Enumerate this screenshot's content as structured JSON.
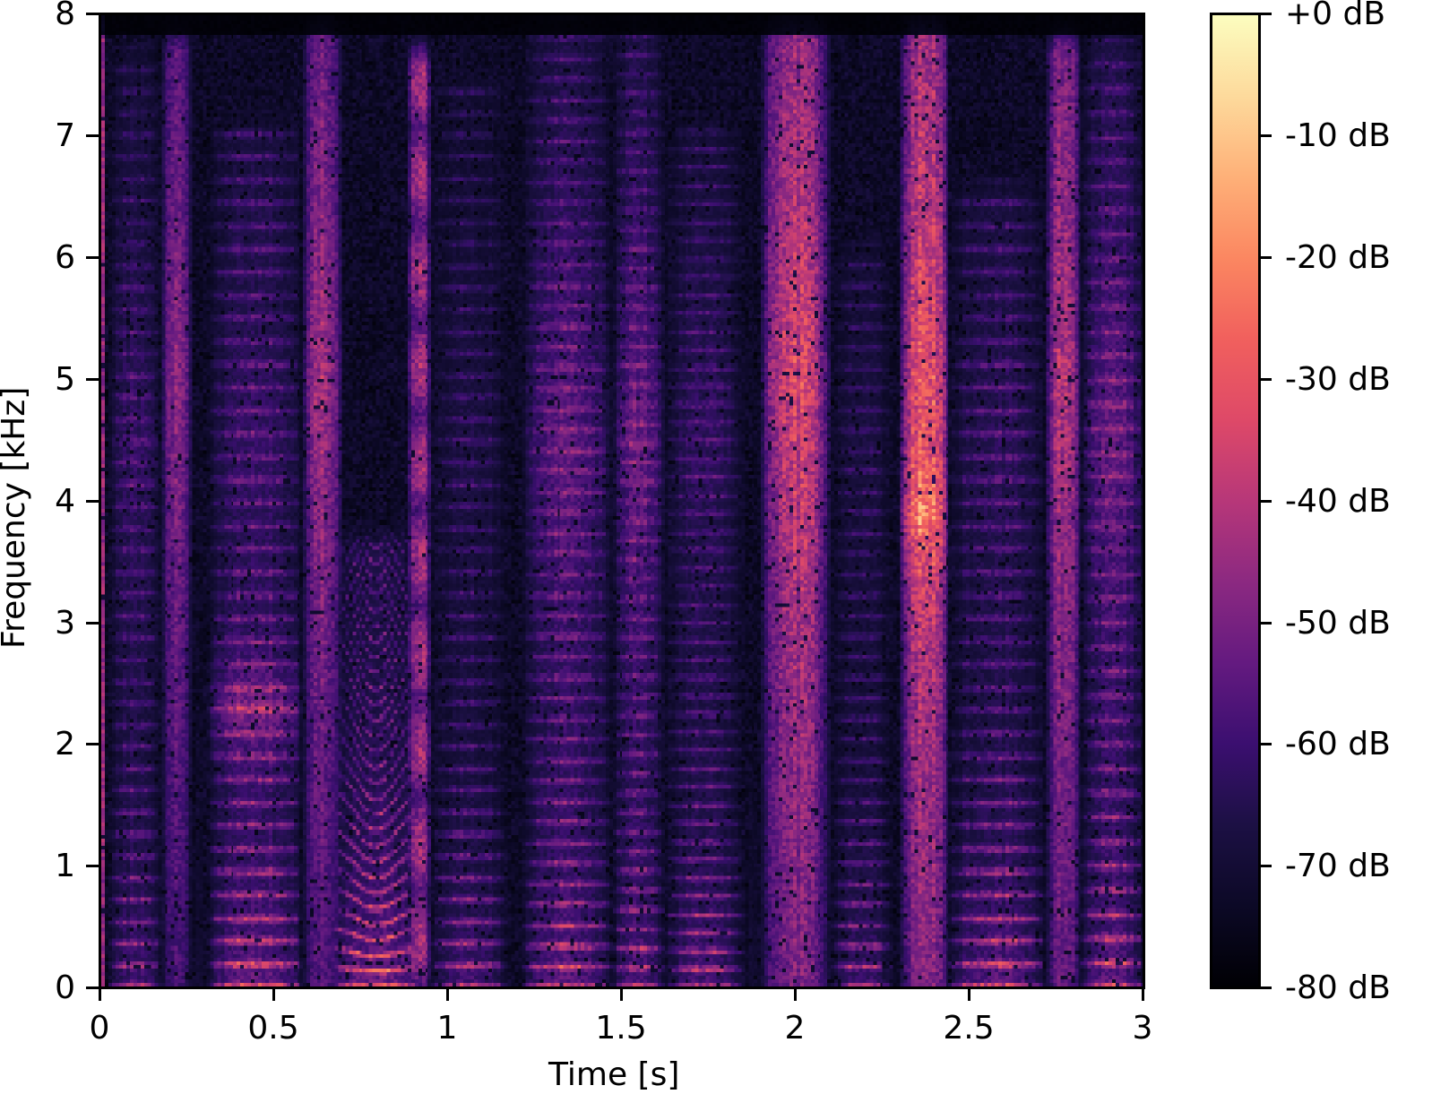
{
  "figure": {
    "ylabel": "Frequency [kHz]",
    "xlabel": "Time [s]",
    "y_ticks": [
      "0",
      "1",
      "2",
      "3",
      "4",
      "5",
      "6",
      "7",
      "8"
    ],
    "x_ticks": [
      "0",
      "0.5",
      "1",
      "1.5",
      "2",
      "2.5",
      "3"
    ],
    "colorbar": {
      "ticks": [
        "+0 dB",
        "-10 dB",
        "-20 dB",
        "-30 dB",
        "-40 dB",
        "-50 dB",
        "-60 dB",
        "-70 dB",
        "-80 dB"
      ],
      "colormap": "magma",
      "stops": [
        "#fcfdbf",
        "#fdda9c",
        "#feb078",
        "#fb8761",
        "#f1605d",
        "#de4968",
        "#b73779",
        "#8c2981",
        "#641a80",
        "#3b0f70",
        "#1c1044",
        "#0c0926",
        "#000004"
      ]
    }
  },
  "chart_data": {
    "type": "heatmap",
    "title": "",
    "xlabel": "Time [s]",
    "ylabel": "Frequency [kHz]",
    "xlim": [
      0,
      3
    ],
    "ylim": [
      0,
      8
    ],
    "x_ticks": [
      0,
      0.5,
      1,
      1.5,
      2,
      2.5,
      3
    ],
    "y_ticks": [
      0,
      1,
      2,
      3,
      4,
      5,
      6,
      7,
      8
    ],
    "colorbar": {
      "label": "",
      "range_db": [
        -80,
        0
      ],
      "ticks_db": [
        0,
        -10,
        -20,
        -30,
        -40,
        -50,
        -60,
        -70,
        -80
      ],
      "tick_labels": [
        "+0 dB",
        "-10 dB",
        "-20 dB",
        "-30 dB",
        "-40 dB",
        "-50 dB",
        "-60 dB",
        "-70 dB",
        "-80 dB"
      ],
      "colormap": "magma"
    },
    "description": "Speech spectrogram, 0-3 s, 0-8 kHz. Strong harmonic stacks (approx -5 to -15 dB) below ~1 kHz during voiced segments; fricative bursts extend upward to ~7.8 kHz; near-silence (-80 dB) above ~7.5 kHz and in gaps.",
    "segments": [
      {
        "t0": 0.0,
        "t1": 0.015,
        "kind": "onset",
        "f0": 0,
        "top": 8.0,
        "level": 0.35
      },
      {
        "t0": 0.02,
        "t1": 0.17,
        "kind": "voiced",
        "f0": 0.18,
        "top": 7.6,
        "level": 0.55,
        "hf": 0.3
      },
      {
        "t0": 0.17,
        "t1": 0.26,
        "kind": "fricative",
        "f0": 0,
        "top": 7.7,
        "level": 0.35,
        "hf": 0.45
      },
      {
        "t0": 0.26,
        "t1": 0.3,
        "kind": "gap",
        "f0": 0,
        "top": 4.0,
        "level": 0.15
      },
      {
        "t0": 0.3,
        "t1": 0.58,
        "kind": "voiced",
        "f0": 0.19,
        "top": 7.0,
        "level": 0.75,
        "hf": 0.25,
        "formant": 2.3
      },
      {
        "t0": 0.58,
        "t1": 0.69,
        "kind": "fricative",
        "f0": 0,
        "top": 7.8,
        "level": 0.4,
        "hf": 0.55
      },
      {
        "t0": 0.66,
        "t1": 0.92,
        "kind": "voiced",
        "f0": 0.13,
        "top": 3.6,
        "level": 0.85,
        "hf": 0.1,
        "curve": 1
      },
      {
        "t0": 0.88,
        "t1": 0.95,
        "kind": "tonal",
        "f0": 0,
        "top": 7.6,
        "level": 0.4,
        "hf": 0.4
      },
      {
        "t0": 0.95,
        "t1": 1.17,
        "kind": "voiced",
        "f0": 0.18,
        "top": 7.4,
        "level": 0.6,
        "hf": 0.15
      },
      {
        "t0": 1.17,
        "t1": 1.21,
        "kind": "gap",
        "f0": 0,
        "top": 1.0,
        "level": 0.05
      },
      {
        "t0": 1.21,
        "t1": 1.47,
        "kind": "voiced",
        "f0": 0.17,
        "top": 7.8,
        "level": 0.65,
        "hf": 0.45
      },
      {
        "t0": 1.47,
        "t1": 1.62,
        "kind": "voiced",
        "f0": 0.16,
        "top": 7.8,
        "level": 0.55,
        "hf": 0.5
      },
      {
        "t0": 1.62,
        "t1": 1.85,
        "kind": "voiced",
        "f0": 0.15,
        "top": 7.0,
        "level": 0.6,
        "hf": 0.25
      },
      {
        "t0": 1.85,
        "t1": 1.9,
        "kind": "gap",
        "f0": 0,
        "top": 3.0,
        "level": 0.15
      },
      {
        "t0": 1.9,
        "t1": 2.1,
        "kind": "fricative",
        "f0": 0,
        "top": 7.8,
        "level": 0.5,
        "hf": 0.65
      },
      {
        "t0": 2.1,
        "t1": 2.28,
        "kind": "voiced",
        "f0": 0.17,
        "top": 6.0,
        "level": 0.55,
        "hf": 0.15
      },
      {
        "t0": 2.28,
        "t1": 2.3,
        "kind": "gap",
        "f0": 0,
        "top": 2.0,
        "level": 0.1
      },
      {
        "t0": 2.3,
        "t1": 2.44,
        "kind": "fricative",
        "f0": 0,
        "top": 7.8,
        "level": 0.55,
        "hf": 0.7,
        "formant": 3.9
      },
      {
        "t0": 2.44,
        "t1": 2.72,
        "kind": "voiced",
        "f0": 0.19,
        "top": 6.5,
        "level": 0.7,
        "hf": 0.2
      },
      {
        "t0": 2.72,
        "t1": 2.82,
        "kind": "fricative",
        "f0": 0,
        "top": 7.7,
        "level": 0.45,
        "hf": 0.55
      },
      {
        "t0": 2.82,
        "t1": 3.0,
        "kind": "voiced",
        "f0": 0.2,
        "top": 7.7,
        "level": 0.65,
        "hf": 0.45
      }
    ]
  }
}
